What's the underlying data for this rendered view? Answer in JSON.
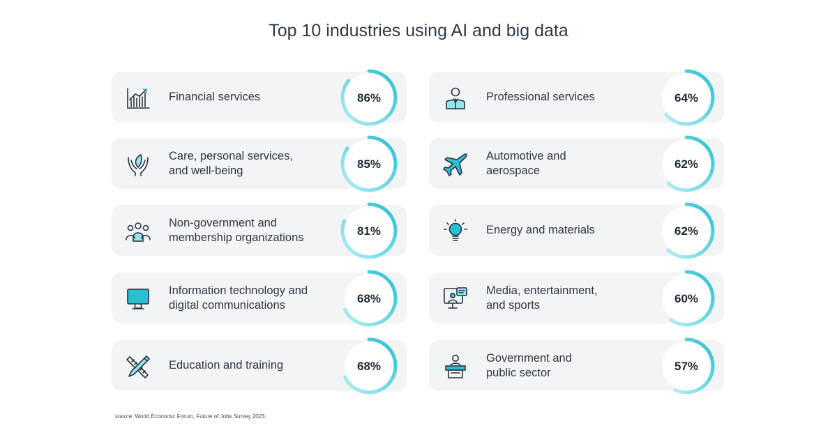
{
  "colors": {
    "accent": "#29bfd0",
    "accent_light": "#93e6ee",
    "card": "#f3f4f5",
    "text": "#2e3741"
  },
  "chart_data": {
    "type": "table",
    "title": "Top 10 industries using AI and big data",
    "source": "source:  World Economic Forum, Future of Jobs Survey 2023.",
    "items": [
      {
        "lines": [
          "Financial services"
        ],
        "value": 86,
        "label": "86%",
        "icon": "chart-growth-icon"
      },
      {
        "lines": [
          "Care, personal services,",
          "and well-being"
        ],
        "value": 85,
        "label": "85%",
        "icon": "caring-hands-icon"
      },
      {
        "lines": [
          "Non-government and",
          "membership organizations"
        ],
        "value": 81,
        "label": "81%",
        "icon": "people-group-icon"
      },
      {
        "lines": [
          "Information technology and",
          "digital communications"
        ],
        "value": 68,
        "label": "68%",
        "icon": "monitor-icon"
      },
      {
        "lines": [
          "Education and training"
        ],
        "value": 68,
        "label": "68%",
        "icon": "pencil-ruler-icon"
      },
      {
        "lines": [
          "Professional services"
        ],
        "value": 64,
        "label": "64%",
        "icon": "professional-person-icon"
      },
      {
        "lines": [
          "Automotive and",
          "aerospace"
        ],
        "value": 62,
        "label": "62%",
        "icon": "airplane-icon"
      },
      {
        "lines": [
          "Energy and materials"
        ],
        "value": 62,
        "label": "62%",
        "icon": "lightbulb-icon"
      },
      {
        "lines": [
          "Media, entertainment,",
          "and sports"
        ],
        "value": 60,
        "label": "60%",
        "icon": "media-screen-icon"
      },
      {
        "lines": [
          "Government and",
          "public sector"
        ],
        "value": 57,
        "label": "57%",
        "icon": "speaker-podium-icon"
      }
    ]
  }
}
